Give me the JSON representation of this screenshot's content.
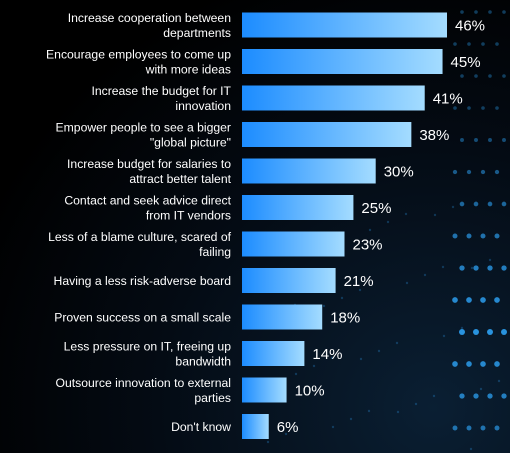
{
  "chart_data": {
    "type": "bar",
    "orientation": "horizontal",
    "categories": [
      [
        "Increase cooperation between",
        "departments"
      ],
      [
        "Encourage employees to come up",
        "with more ideas"
      ],
      [
        "Increase the budget for IT",
        "innovation"
      ],
      [
        "Empower people to see a bigger",
        "\"global picture\""
      ],
      [
        "Increase budget for salaries to",
        "attract better talent"
      ],
      [
        "Contact and seek advice direct",
        "from IT vendors"
      ],
      [
        "Less of a blame culture, scared of",
        "failing"
      ],
      [
        "Having a less risk-adverse board"
      ],
      [
        "Proven success on a small scale"
      ],
      [
        "Less pressure on IT, freeing up",
        "bandwidth"
      ],
      [
        "Outsource innovation to external",
        "parties"
      ],
      [
        "Don't know"
      ]
    ],
    "values": [
      46,
      45,
      41,
      38,
      30,
      25,
      23,
      21,
      18,
      14,
      10,
      6
    ],
    "value_labels": [
      "46%",
      "45%",
      "41%",
      "38%",
      "30%",
      "25%",
      "23%",
      "21%",
      "18%",
      "14%",
      "10%",
      "6%"
    ],
    "title": "",
    "xlabel": "",
    "ylabel": "",
    "xlim": [
      0,
      46
    ],
    "grid": false,
    "legend": "none"
  },
  "colors": {
    "background": "#000000",
    "bar_gradient_start": "#1c8cff",
    "bar_gradient_end": "#a4dcff",
    "text": "#ffffff",
    "dots": "#2fa9ff"
  }
}
